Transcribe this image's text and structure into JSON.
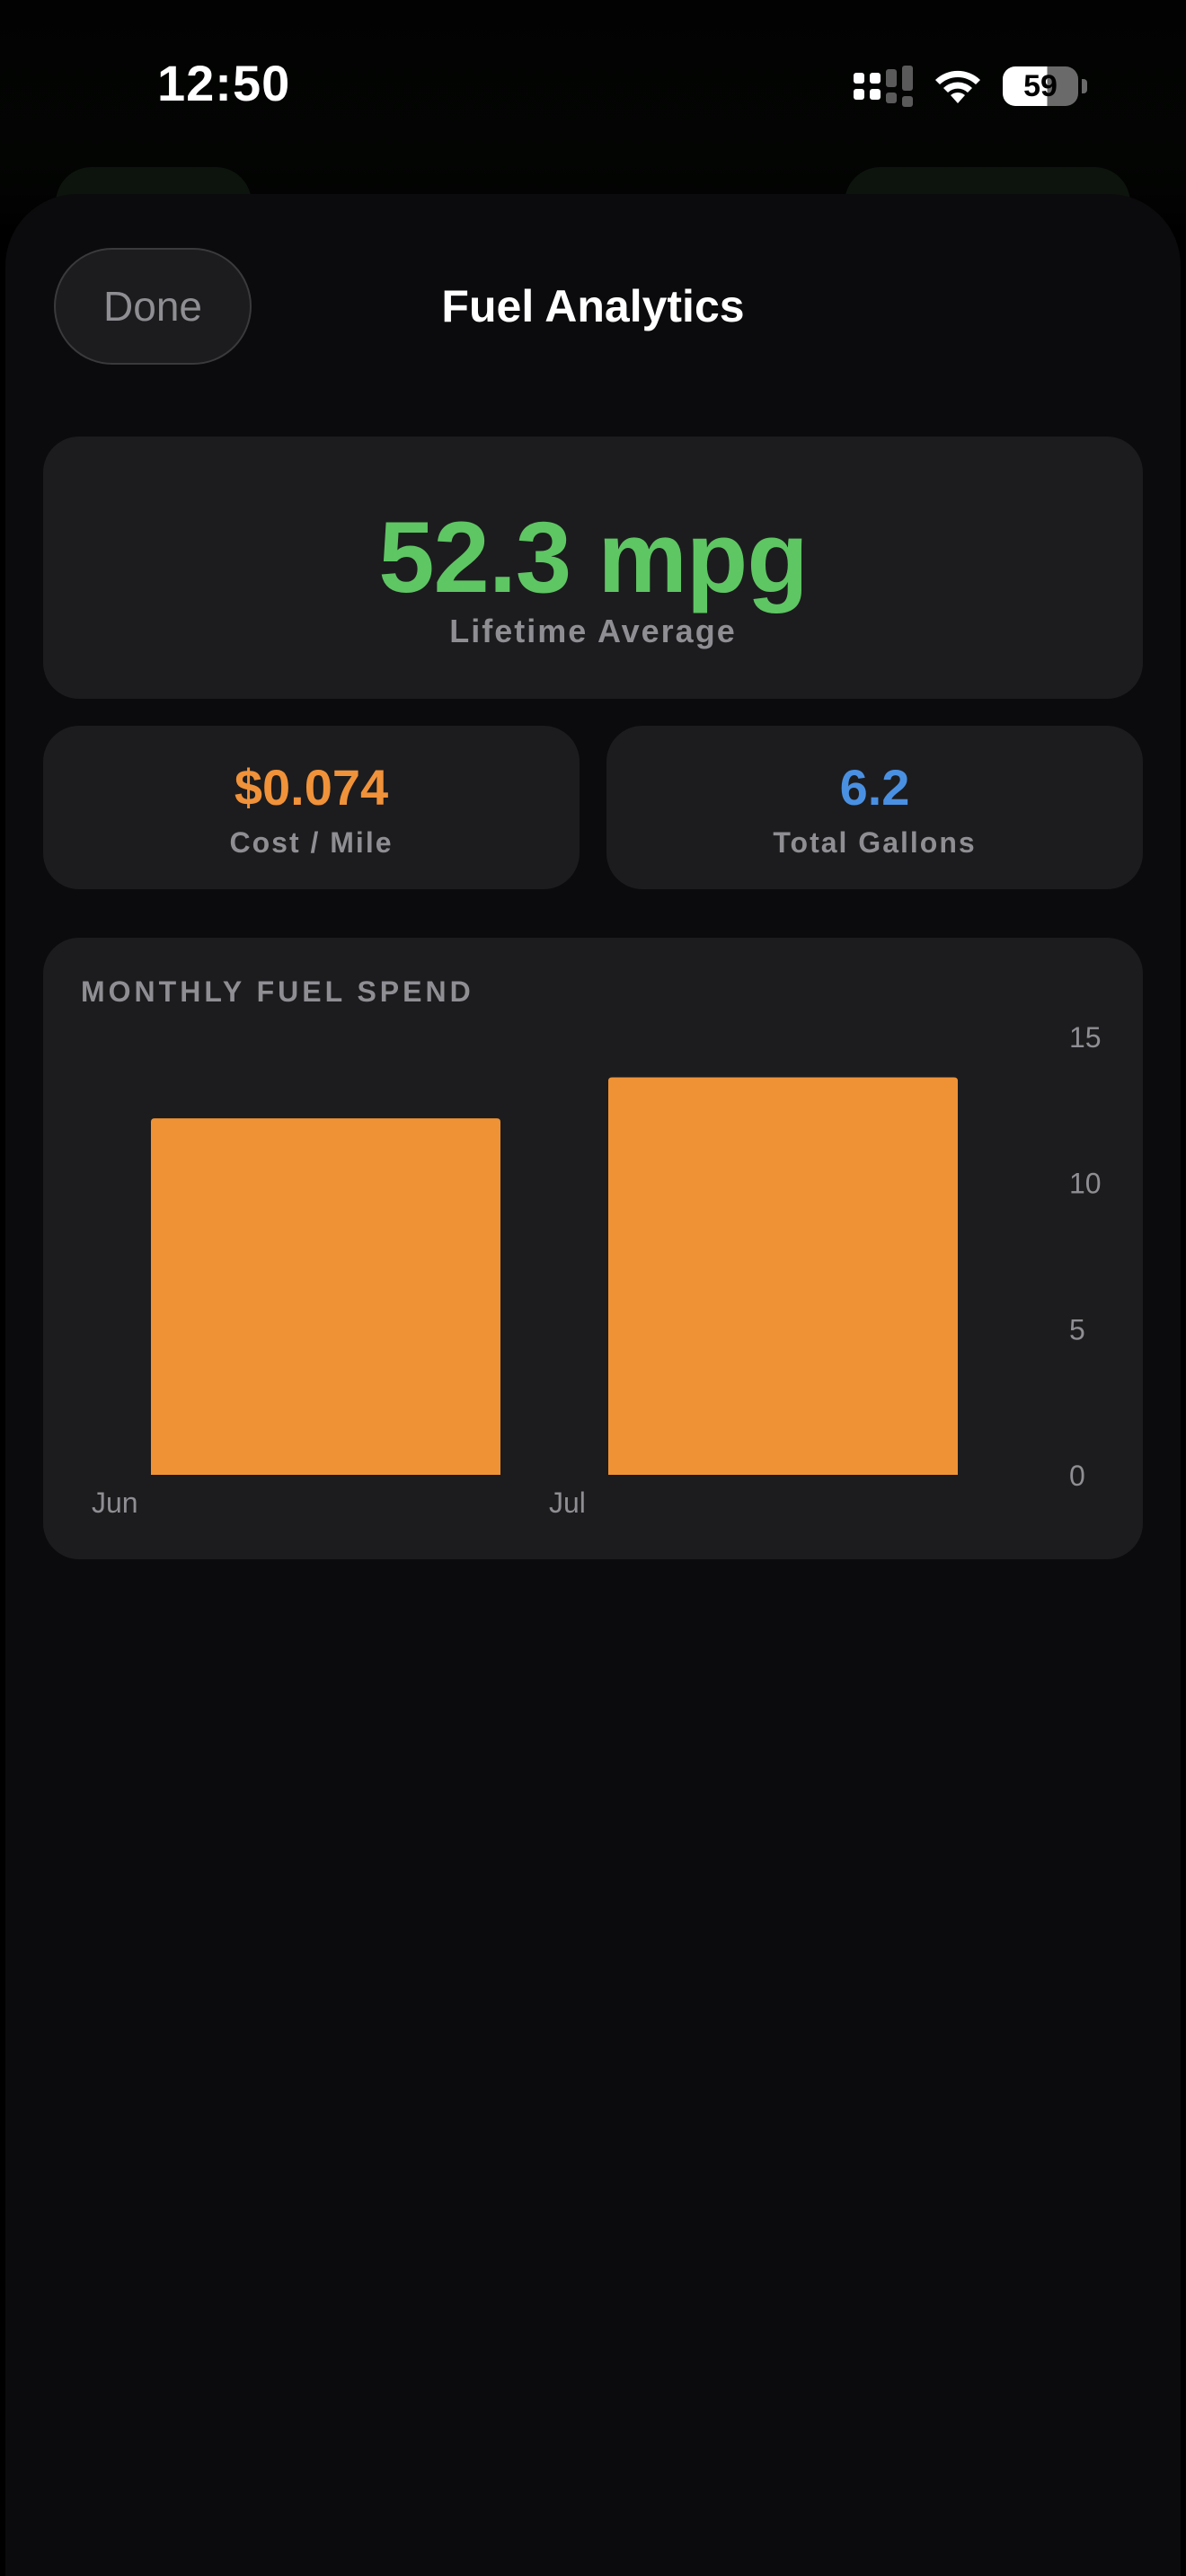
{
  "status_bar": {
    "time": "12:50",
    "battery": "59",
    "icons": [
      "cellular-signal-icon",
      "wifi-icon",
      "battery-icon"
    ]
  },
  "header": {
    "done_label": "Done",
    "title": "Fuel Analytics"
  },
  "summary": {
    "lifetime_value": "52.3 mpg",
    "lifetime_label": "Lifetime Average",
    "cost_value": "$0.074",
    "cost_label": "Cost / Mile",
    "gallons_value": "6.2",
    "gallons_label": "Total Gallons"
  },
  "colors": {
    "mpg": "#5ec663",
    "cost": "#f0923a",
    "gallons": "#4a90e2",
    "bar": "#ef9236"
  },
  "chart_section": {
    "title": "MONTHLY FUEL SPEND"
  },
  "chart_data": {
    "type": "bar",
    "title": "MONTHLY FUEL SPEND",
    "categories": [
      "Jun",
      "Jul"
    ],
    "values": [
      12.2,
      13.6
    ],
    "ylim": [
      0,
      15
    ],
    "yticks": [
      0,
      5,
      10,
      15
    ],
    "ytick_labels": [
      "0",
      "5",
      "10",
      "15"
    ],
    "y_axis_side": "right",
    "grid": false,
    "legend": "none"
  }
}
